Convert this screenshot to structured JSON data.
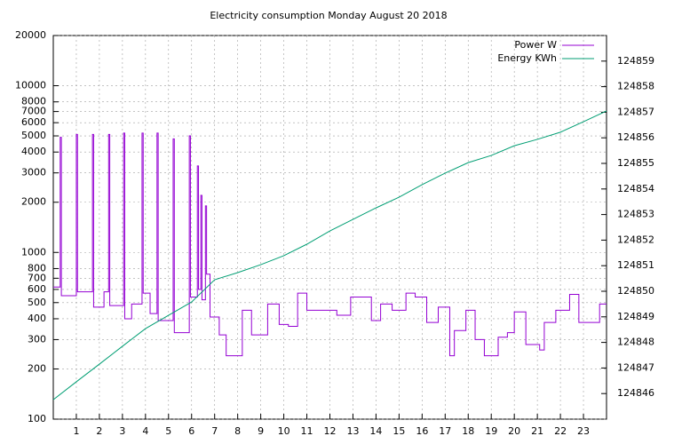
{
  "chart_data": {
    "type": "line",
    "title": "Electricity consumption Monday August 20 2018",
    "line_style": "steps",
    "grid": true,
    "legend": "top-right",
    "ylog": true,
    "xlim": [
      0,
      24
    ],
    "xticks": [
      1,
      2,
      3,
      4,
      5,
      6,
      7,
      8,
      9,
      10,
      11,
      12,
      13,
      14,
      15,
      16,
      17,
      18,
      19,
      20,
      21,
      22,
      23
    ],
    "ylim": [
      100,
      20000
    ],
    "yticks": [
      100,
      200,
      300,
      400,
      500,
      600,
      700,
      800,
      1000,
      2000,
      3000,
      4000,
      5000,
      6000,
      7000,
      8000,
      10000,
      20000
    ],
    "y2lim": [
      124845,
      124860
    ],
    "y2ticks": [
      124846,
      124847,
      124848,
      124849,
      124850,
      124851,
      124852,
      124853,
      124854,
      124855,
      124856,
      124857,
      124858,
      124859
    ],
    "series": [
      {
        "name": "Power W",
        "color": "#9400d3",
        "style": "steps",
        "x": [
          0,
          0.3,
          0.35,
          1.0,
          1.05,
          1.7,
          1.75,
          2.2,
          2.4,
          2.45,
          3.05,
          3.1,
          3.4,
          3.85,
          3.9,
          4.2,
          4.5,
          4.55,
          5.2,
          5.25,
          5.9,
          5.95,
          6.25,
          6.3,
          6.4,
          6.45,
          6.6,
          6.65,
          6.8,
          7.2,
          7.5,
          8.2,
          8.6,
          9.3,
          9.8,
          10.2,
          10.6,
          11,
          12.3,
          12.9,
          13.8,
          14.2,
          14.7,
          15.3,
          15.7,
          16.2,
          16.7,
          17.2,
          17.4,
          17.9,
          18.3,
          18.7,
          19.3,
          19.7,
          20,
          20.5,
          21.1,
          21.3,
          21.8,
          22.4,
          22.8,
          23.7
        ],
        "values": [
          620,
          4900,
          550,
          5100,
          580,
          5100,
          470,
          580,
          5100,
          480,
          5200,
          400,
          490,
          5200,
          570,
          430,
          5200,
          390,
          4800,
          330,
          5000,
          540,
          3300,
          600,
          2200,
          520,
          1900,
          740,
          410,
          320,
          240,
          450,
          320,
          490,
          370,
          360,
          570,
          450,
          420,
          540,
          390,
          490,
          450,
          570,
          540,
          380,
          470,
          240,
          340,
          450,
          300,
          240,
          310,
          330,
          440,
          280,
          260,
          380,
          450,
          560,
          380,
          490
        ]
      },
      {
        "name": "Energy KWh",
        "color": "#009e73",
        "axis": "y2",
        "style": "line",
        "x": [
          0,
          1,
          2,
          3,
          4,
          5,
          6,
          7,
          8,
          9,
          10,
          11,
          12,
          13,
          14,
          15,
          16,
          17,
          18,
          19,
          20,
          21,
          22,
          23,
          24
        ],
        "values": [
          124845.76,
          124846.46,
          124847.15,
          124847.85,
          124848.54,
          124849.06,
          124849.58,
          124850.45,
          124850.73,
          124851.04,
          124851.39,
          124851.84,
          124852.36,
          124852.81,
          124853.26,
          124853.68,
          124854.17,
          124854.62,
          124855.03,
          124855.31,
          124855.69,
          124855.94,
          124856.22,
          124856.63,
          124857.05
        ]
      }
    ]
  }
}
